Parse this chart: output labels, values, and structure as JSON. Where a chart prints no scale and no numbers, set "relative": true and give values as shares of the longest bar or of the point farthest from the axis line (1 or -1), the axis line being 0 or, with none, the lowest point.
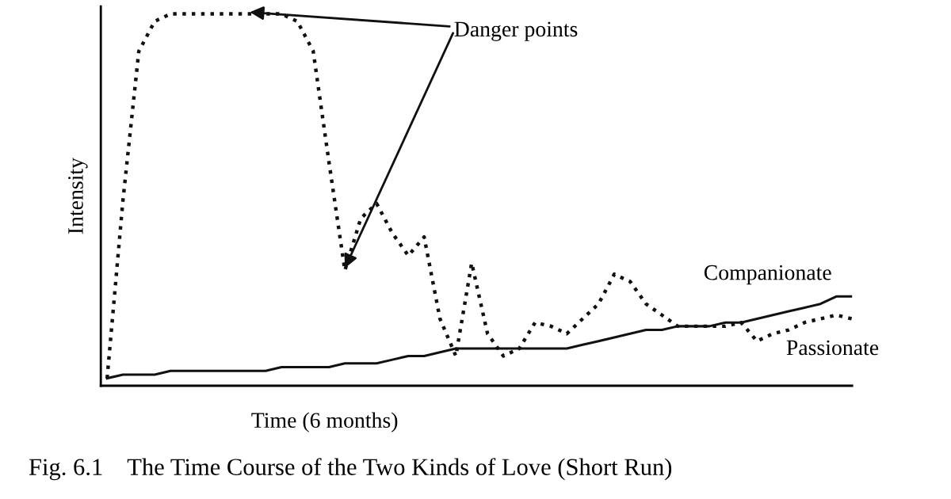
{
  "chart_data": {
    "type": "line",
    "relative": true,
    "title": "Fig. 6.1    The Time Course of the Two Kinds of Love (Short Run)",
    "xlabel": "Time (6 months)",
    "ylabel": "Intensity",
    "annotations": [
      "Danger points"
    ],
    "categories": [
      null,
      null,
      null,
      null,
      null,
      null,
      null,
      null,
      null,
      null,
      null,
      null,
      null,
      null,
      null,
      null,
      null,
      null,
      null,
      null,
      null,
      null,
      null,
      null,
      null,
      null,
      null,
      null,
      null,
      null,
      null,
      null,
      null,
      null,
      null,
      null,
      null,
      null,
      null,
      null,
      null,
      null,
      null,
      null,
      null,
      null,
      null,
      null
    ],
    "series": [
      {
        "name": "Passionate",
        "color": "#111111",
        "line_style": "dotted",
        "values": [
          0.02,
          0.5,
          0.9,
          0.98,
          1.0,
          1.0,
          1.0,
          1.0,
          1.0,
          1.0,
          1.0,
          1.0,
          0.98,
          0.9,
          0.6,
          0.31,
          0.45,
          0.49,
          0.41,
          0.35,
          0.4,
          0.18,
          0.08,
          0.33,
          0.14,
          0.08,
          0.1,
          0.17,
          0.16,
          0.14,
          0.18,
          0.22,
          0.3,
          0.28,
          0.22,
          0.19,
          0.16,
          0.16,
          0.16,
          0.16,
          0.17,
          0.12,
          0.14,
          0.15,
          0.17,
          0.18,
          0.19,
          0.18
        ]
      },
      {
        "name": "Companionate",
        "color": "#111111",
        "line_style": "solid",
        "values": [
          0.02,
          0.03,
          0.03,
          0.03,
          0.04,
          0.04,
          0.04,
          0.04,
          0.04,
          0.04,
          0.04,
          0.05,
          0.05,
          0.05,
          0.05,
          0.06,
          0.06,
          0.06,
          0.07,
          0.08,
          0.08,
          0.09,
          0.1,
          0.1,
          0.1,
          0.1,
          0.1,
          0.1,
          0.1,
          0.1,
          0.11,
          0.12,
          0.13,
          0.14,
          0.15,
          0.15,
          0.16,
          0.16,
          0.16,
          0.17,
          0.17,
          0.18,
          0.19,
          0.2,
          0.21,
          0.22,
          0.24,
          0.24
        ]
      }
    ]
  }
}
